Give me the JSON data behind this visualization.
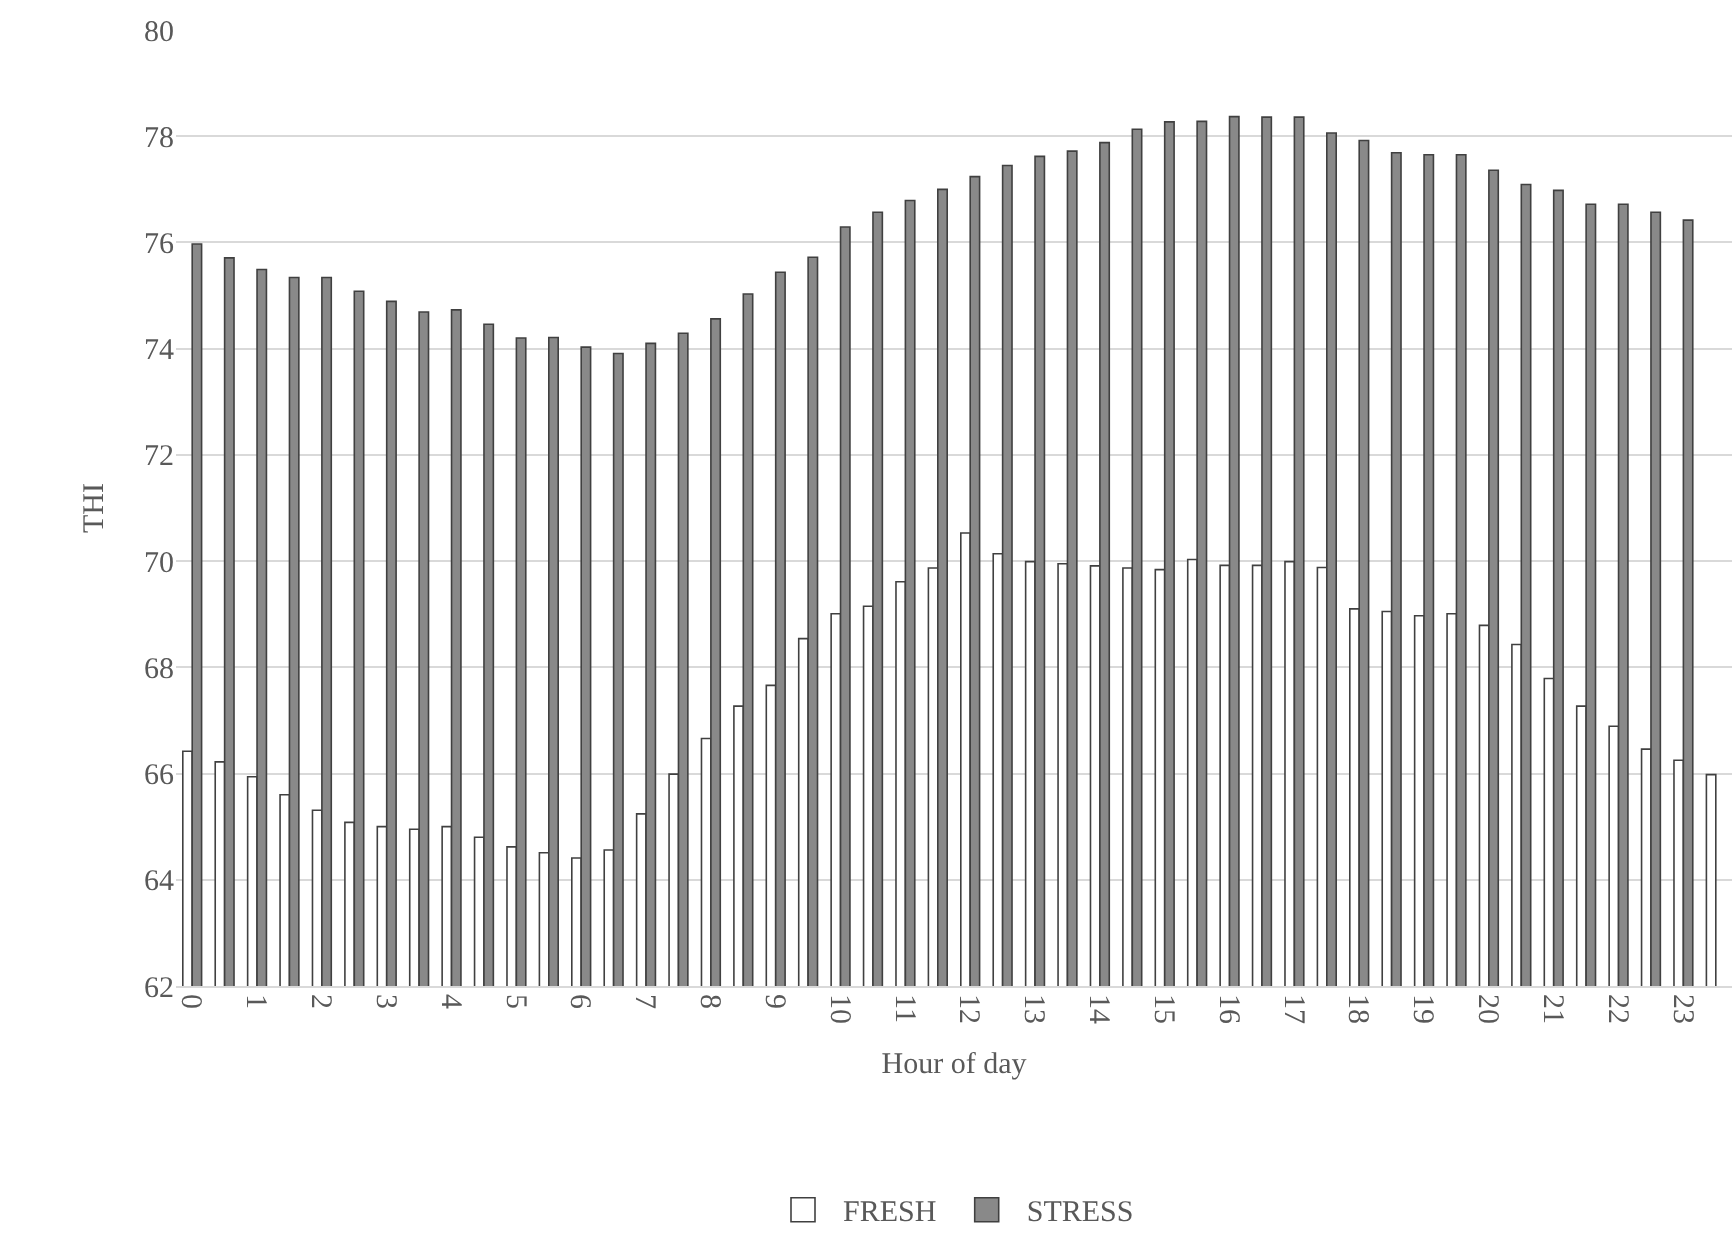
{
  "chart_data": {
    "type": "bar",
    "xlabel": "Hour of day",
    "ylabel": "THI",
    "categories": [
      "0",
      null,
      "1",
      null,
      "2",
      null,
      "3",
      null,
      "4",
      null,
      "5",
      null,
      "6",
      null,
      "7",
      null,
      "8",
      null,
      "9",
      null,
      "10",
      null,
      "11",
      null,
      "12",
      null,
      "13",
      null,
      "14",
      null,
      "15",
      null,
      "16",
      null,
      "17",
      null,
      "18",
      null,
      "19",
      null,
      "20",
      null,
      "21",
      null,
      "22",
      null,
      "23",
      null
    ],
    "series": [
      {
        "name": "FRESH",
        "color": "#ffffff",
        "values": [
          66.42,
          66.22,
          65.94,
          65.6,
          65.31,
          65.08,
          65.0,
          64.95,
          65.0,
          64.8,
          64.62,
          64.51,
          64.41,
          64.56,
          65.24,
          65.99,
          66.66,
          67.27,
          67.66,
          68.54,
          69.01,
          69.15,
          69.61,
          69.87,
          70.53,
          70.14,
          69.99,
          69.95,
          69.91,
          69.87,
          69.84,
          70.03,
          69.92,
          69.92,
          69.99,
          69.88,
          69.1,
          69.05,
          68.97,
          69.01,
          68.79,
          68.43,
          67.79,
          67.27,
          66.89,
          66.46,
          66.25,
          65.98
        ]
      },
      {
        "name": "STRESS",
        "color": "#898989",
        "values": [
          75.97,
          75.71,
          75.49,
          75.34,
          75.34,
          75.08,
          74.89,
          74.69,
          74.73,
          74.46,
          74.2,
          74.21,
          74.03,
          73.91,
          74.1,
          74.29,
          74.56,
          75.03,
          75.44,
          75.72,
          76.29,
          76.57,
          76.79,
          77.0,
          77.24,
          77.45,
          77.62,
          77.72,
          77.88,
          78.13,
          78.27,
          78.28,
          78.37,
          78.36,
          78.36,
          78.06,
          77.92,
          77.69,
          77.65,
          77.65,
          77.36,
          77.09,
          76.98,
          76.72,
          76.72,
          76.57,
          76.42,
          null
        ]
      }
    ],
    "ylim": [
      62,
      80
    ],
    "yticks": [
      62,
      64,
      66,
      68,
      70,
      72,
      74,
      76,
      78,
      80
    ],
    "grid": "y",
    "legend": "bottom"
  }
}
